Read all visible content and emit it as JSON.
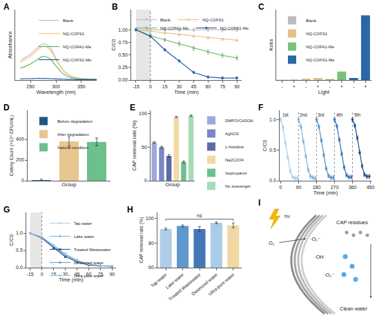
{
  "chart_data": [
    {
      "panel": "A",
      "type": "line",
      "x": [
        230,
        240,
        250,
        260,
        270,
        280,
        290,
        300,
        310,
        320,
        330,
        340,
        350,
        360,
        370,
        380
      ],
      "xlim": [
        220,
        380
      ],
      "xticks": [
        250,
        300,
        350
      ],
      "ylim": [
        0,
        1.8
      ],
      "tick_labels": "x",
      "x_label": "Wavelength (nm)",
      "y_label": "Absorbance",
      "legend": "top-right",
      "series": [
        {
          "name": "Blank",
          "color": "#c9b6e2",
          "values": [
            0.5,
            0.58,
            0.66,
            0.78,
            0.9,
            0.92,
            0.8,
            0.56,
            0.33,
            0.18,
            0.1,
            0.06,
            0.04,
            0.03,
            0.02,
            0.02
          ]
        },
        {
          "name": "NQ-COFS1",
          "color": "#f4c56a",
          "values": [
            0.45,
            0.53,
            0.61,
            0.72,
            0.84,
            0.86,
            0.75,
            0.52,
            0.31,
            0.17,
            0.09,
            0.05,
            0.035,
            0.025,
            0.02,
            0.02
          ]
        },
        {
          "name": "NQ-COFA1-Me",
          "color": "#5cb85c",
          "values": [
            0.3,
            0.35,
            0.41,
            0.49,
            0.58,
            0.6,
            0.52,
            0.36,
            0.21,
            0.11,
            0.06,
            0.035,
            0.025,
            0.02,
            0.015,
            0.015
          ]
        },
        {
          "name": "NQ-COFS1-Me",
          "color": "#1f5aa6",
          "values": [
            0.03,
            0.035,
            0.035,
            0.04,
            0.04,
            0.04,
            0.035,
            0.03,
            0.025,
            0.02,
            0.015,
            0.01,
            0.01,
            0.01,
            0.01,
            0.01
          ]
        }
      ]
    },
    {
      "panel": "B",
      "type": "line",
      "x": [
        -15,
        0,
        15,
        30,
        45,
        60,
        75,
        90
      ],
      "xlim": [
        -20,
        95
      ],
      "xticks": [
        -15,
        0,
        15,
        30,
        45,
        60,
        75,
        90
      ],
      "ylim": [
        0,
        1.4
      ],
      "yticks": [
        {
          "value": 0,
          "label": "0.00"
        },
        0.25,
        {
          "value": 0.5,
          "label": "0.50"
        },
        0.75,
        {
          "value": 1,
          "label": "1.00"
        }
      ],
      "x_label": "Time (min)",
      "y_label": "C/C0",
      "legend": "top",
      "marker": "circle",
      "dark_period": [
        -15,
        0
      ],
      "series": [
        {
          "name": "Blank",
          "color": "#bfbfbf",
          "values": [
            1,
            1,
            1,
            0.99,
            1,
            1,
            0.99,
            1
          ],
          "errors": [
            0.03,
            0.03,
            0.03,
            0.03,
            0.03,
            0.03,
            0.03,
            0.03
          ]
        },
        {
          "name": "NQ-COFS1",
          "color": "#e6c58f",
          "values": [
            1,
            0.97,
            0.93,
            0.9,
            0.87,
            0.84,
            0.81,
            0.79
          ],
          "errors": [
            0.02,
            0.02,
            0.02,
            0.02,
            0.02,
            0.02,
            0.02,
            0.02
          ]
        },
        {
          "name": "NQ-COFA1-Me",
          "color": "#79bd7c",
          "values": [
            1,
            0.88,
            0.8,
            0.72,
            0.63,
            0.56,
            0.49,
            0.44
          ],
          "errors": [
            0.02,
            0.03,
            0.03,
            0.04,
            0.04,
            0.04,
            0.04,
            0.04
          ]
        },
        {
          "name": "NQ-COFS1-Me",
          "color": "#2b5ea3",
          "values": [
            1,
            0.87,
            0.6,
            0.38,
            0.15,
            0.06,
            0.04,
            0.04
          ],
          "errors": [
            0.02,
            0.02,
            0.02,
            0.02,
            0.02,
            0.02,
            0.02,
            0.02
          ]
        }
      ]
    },
    {
      "panel": "C",
      "type": "bar",
      "categories": [
        "-",
        "+",
        "-",
        "+",
        "-",
        "+",
        "-",
        "+"
      ],
      "ylim": [
        0,
        0.062
      ],
      "tick_labels": "x",
      "x_label": "Light",
      "y_label": "Kobs",
      "legend": "top-left",
      "series": [
        {
          "name": "Blank",
          "color": "#bdbdbd",
          "values": [
            0.0003,
            0.0004,
            null,
            null,
            null,
            null,
            null,
            null
          ]
        },
        {
          "name": "NQ-COFS1",
          "color": "#e3c08a",
          "values": [
            null,
            null,
            0.0012,
            0.0018,
            null,
            null,
            null,
            null
          ]
        },
        {
          "name": "NQ-COFA1-Me",
          "color": "#7cc07e",
          "values": [
            null,
            null,
            null,
            null,
            0.0008,
            0.0075,
            null,
            null
          ]
        },
        {
          "name": "NQ-COFS1-Me",
          "color": "#2b66a8",
          "values": [
            null,
            null,
            null,
            null,
            null,
            null,
            0.0018,
            0.057
          ]
        }
      ]
    },
    {
      "panel": "D",
      "type": "bar",
      "categories": [
        "Before degradation",
        "After degradation",
        "Natural condition"
      ],
      "values": [
        6,
        380,
        375
      ],
      "errors": [
        8,
        45,
        38
      ],
      "colors": [
        "#21577f",
        "#e8c690",
        "#6cc08b"
      ],
      "ylim": [
        0,
        680
      ],
      "yticks": [
        0,
        200,
        400
      ],
      "tick_labels": "y",
      "x_label": "Group",
      "y_label": "Colony Count (×10⁶ CFU/mL)",
      "legend": "top-left"
    },
    {
      "panel": "E",
      "type": "bar",
      "categories": [
        "DMPO/CH3OH",
        "AgNO3",
        "L-histidine",
        "Na2C2O4",
        "Isopropanol",
        "No scavenger"
      ],
      "values": [
        57,
        50,
        37,
        95,
        28,
        97
      ],
      "errors": [
        1,
        1.5,
        2,
        1,
        1.5,
        1
      ],
      "colors": [
        "#9fa8da",
        "#7b86c6",
        "#5c6aa8",
        "#f3d9a4",
        "#6cbf8e",
        "#a6dbb8"
      ],
      "ylim": [
        0,
        105
      ],
      "yticks": [
        0,
        50,
        100
      ],
      "tick_labels": "y",
      "x_label": "Group",
      "y_label": "CAP removal rate (%)",
      "legend": "right"
    },
    {
      "panel": "F",
      "type": "line",
      "xlim": [
        -5,
        455
      ],
      "xticks": [
        0,
        90,
        180,
        270,
        360,
        450
      ],
      "ylim": [
        0,
        1.15
      ],
      "yticks": [
        {
          "value": 0,
          "label": "0.0"
        },
        0.5,
        {
          "value": 1,
          "label": "1.0"
        }
      ],
      "x_label": "Time (min)",
      "y_label": "C/C0",
      "marker": "circle",
      "separators": [
        90,
        180,
        270,
        360
      ],
      "series": [
        {
          "name": "1st",
          "color": "#a9cdea",
          "x": [
            0,
            12,
            24,
            36,
            48,
            60,
            72,
            84
          ],
          "values": [
            1,
            0.87,
            0.62,
            0.38,
            0.16,
            0.06,
            0.04,
            0.04
          ],
          "errors": [
            0.03,
            0.03,
            0.03,
            0.03,
            0.03,
            0.03,
            0.03,
            0.03
          ]
        },
        {
          "name": "2nd",
          "color": "#7fb2dd",
          "x": [
            90,
            102,
            114,
            126,
            138,
            150,
            162,
            174
          ],
          "values": [
            1,
            0.88,
            0.64,
            0.4,
            0.18,
            0.07,
            0.05,
            0.04
          ],
          "errors": [
            0.03,
            0.03,
            0.03,
            0.03,
            0.03,
            0.03,
            0.03,
            0.03
          ]
        },
        {
          "name": "3rd",
          "color": "#4f8fcb",
          "x": [
            180,
            192,
            204,
            216,
            228,
            240,
            252,
            264
          ],
          "values": [
            1,
            0.88,
            0.66,
            0.42,
            0.2,
            0.08,
            0.05,
            0.05
          ],
          "errors": [
            0.03,
            0.03,
            0.03,
            0.03,
            0.03,
            0.03,
            0.03,
            0.03
          ]
        },
        {
          "name": "4th",
          "color": "#2f6fb1",
          "x": [
            270,
            282,
            294,
            306,
            318,
            330,
            342,
            354
          ],
          "values": [
            1,
            0.89,
            0.67,
            0.44,
            0.22,
            0.09,
            0.06,
            0.06
          ],
          "errors": [
            0.03,
            0.03,
            0.03,
            0.03,
            0.03,
            0.03,
            0.03,
            0.03
          ]
        },
        {
          "name": "5th",
          "color": "#1b4f8a",
          "x": [
            360,
            372,
            384,
            396,
            408,
            420,
            432,
            444
          ],
          "values": [
            1,
            0.9,
            0.7,
            0.46,
            0.24,
            0.1,
            0.07,
            0.07
          ],
          "errors": [
            0.03,
            0.03,
            0.03,
            0.03,
            0.03,
            0.03,
            0.03,
            0.03
          ]
        }
      ]
    },
    {
      "panel": "G",
      "type": "line",
      "x": [
        -15,
        0,
        15,
        30,
        45,
        60,
        75,
        90
      ],
      "xlim": [
        -20,
        95
      ],
      "xticks": [
        -15,
        0,
        15,
        30,
        45,
        60,
        75,
        90
      ],
      "ylim": [
        0,
        1.6
      ],
      "yticks": [
        {
          "value": 0,
          "label": "0.0"
        },
        0.5,
        {
          "value": 1,
          "label": "1.0"
        }
      ],
      "x_label": "Time (min)",
      "y_label": "C/C0",
      "legend": "top-right",
      "marker": "circle",
      "dark_period": [
        -15,
        0
      ],
      "series": [
        {
          "name": "Tap water",
          "color": "#b9d6ee",
          "values": [
            1,
            0.88,
            0.62,
            0.36,
            0.2,
            0.09,
            0.05,
            0.04
          ],
          "errors": [
            0.03,
            0.02,
            0.03,
            0.03,
            0.02,
            0.02,
            0.01,
            0.01
          ]
        },
        {
          "name": "Lake water",
          "color": "#8cbbe3",
          "values": [
            1,
            0.87,
            0.6,
            0.34,
            0.18,
            0.08,
            0.05,
            0.04
          ],
          "errors": [
            0.03,
            0.02,
            0.03,
            0.03,
            0.02,
            0.02,
            0.01,
            0.01
          ]
        },
        {
          "name": "Treated Wastewater",
          "color": "#2d5b8e",
          "values": [
            1,
            0.86,
            0.58,
            0.32,
            0.17,
            0.07,
            0.05,
            0.04
          ],
          "errors": [
            0.03,
            0.02,
            0.03,
            0.03,
            0.02,
            0.02,
            0.01,
            0.01
          ]
        },
        {
          "name": "Deionized water",
          "color": "#6aa0d4",
          "values": [
            1,
            0.88,
            0.64,
            0.38,
            0.21,
            0.1,
            0.06,
            0.05
          ],
          "errors": [
            0.03,
            0.02,
            0.03,
            0.03,
            0.02,
            0.02,
            0.01,
            0.01
          ]
        },
        {
          "name": "Ultra-pure water",
          "color": "#9cc6e8",
          "values": [
            1,
            0.89,
            0.65,
            0.4,
            0.22,
            0.1,
            0.06,
            0.05
          ],
          "errors": [
            0.03,
            0.02,
            0.03,
            0.03,
            0.02,
            0.02,
            0.01,
            0.01
          ]
        }
      ]
    },
    {
      "panel": "H",
      "type": "bar",
      "categories": [
        "Tap water",
        "Lake water",
        "Treated Wastewater",
        "Deionized water",
        "Ultra-pure water"
      ],
      "values": [
        91.5,
        94,
        91.5,
        96.5,
        94.5
      ],
      "errors": [
        0.8,
        0.8,
        2,
        0.7,
        2
      ],
      "colors": [
        "#b0cde8",
        "#5f97cf",
        "#4477b8",
        "#a9cde9",
        "#f1d7a3"
      ],
      "ylim": [
        60,
        105
      ],
      "yticks": [
        60,
        80,
        100
      ],
      "y_label": "CAP removal rate (%)",
      "significance": {
        "text": "ns",
        "y": 99.5
      }
    },
    {
      "panel": "I",
      "type": "diagram",
      "labels": [
        "hν",
        "O₂",
        "·O₂⁻",
        "·OH",
        "·O₂⁻",
        "CAP residues",
        "Clean water"
      ]
    }
  ]
}
